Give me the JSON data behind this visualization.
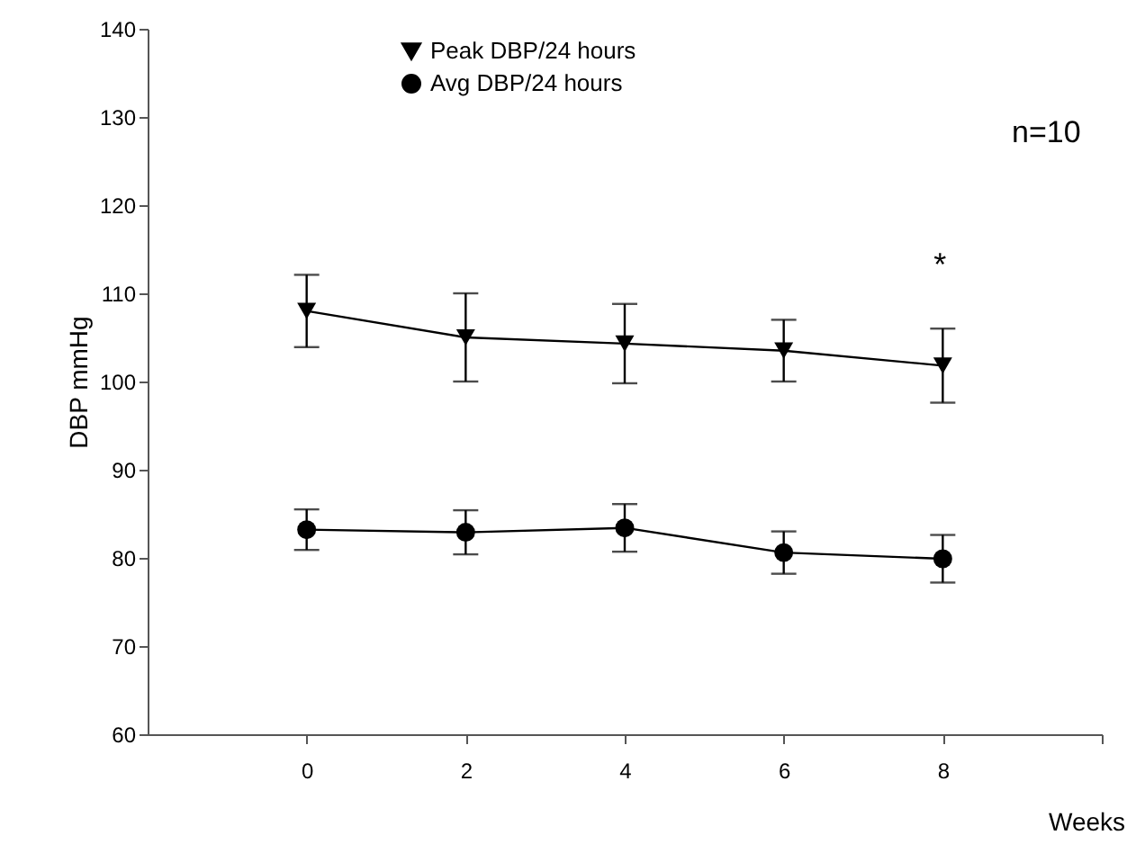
{
  "chart_data": {
    "type": "line",
    "ylabel": "DBP mmHg",
    "xlabel": "Weeks",
    "x": [
      0,
      2,
      4,
      6,
      8
    ],
    "xlim": [
      -2,
      10
    ],
    "xticks": [
      0,
      2,
      4,
      6,
      8,
      {
        "value": 10,
        "label": null
      }
    ],
    "ylim": [
      60,
      140
    ],
    "yticks": [
      60,
      70,
      80,
      90,
      100,
      110,
      120,
      130,
      140
    ],
    "grid": false,
    "legend": "top",
    "annotations": [
      "n=10",
      "*"
    ],
    "series": [
      {
        "name": "Peak DBP/24 hours",
        "color": "#000000",
        "marker": "triangle",
        "values": [
          108.0,
          105.0,
          104.3,
          103.5,
          101.8
        ],
        "errors": [
          4.1,
          5.0,
          4.5,
          3.5,
          4.2
        ]
      },
      {
        "name": "Avg DBP/24 hours",
        "color": "#000000",
        "marker": "circle",
        "values": [
          83.2,
          82.9,
          83.4,
          80.6,
          79.9
        ],
        "errors": [
          2.3,
          2.5,
          2.7,
          2.4,
          2.7
        ]
      }
    ]
  }
}
